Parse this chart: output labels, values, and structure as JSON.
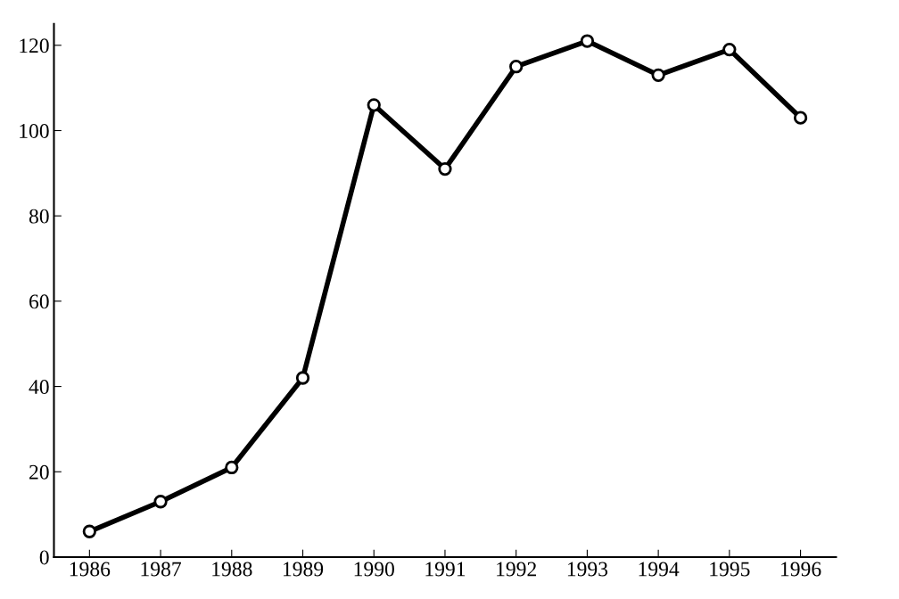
{
  "chart_data": {
    "type": "line",
    "categories": [
      "1986",
      "1987",
      "1988",
      "1989",
      "1990",
      "1991",
      "1992",
      "1993",
      "1994",
      "1995",
      "1996"
    ],
    "series": [
      {
        "color": "#000000",
        "values": [
          6,
          13,
          21,
          42,
          106,
          91,
          115,
          121,
          113,
          119,
          103
        ]
      }
    ],
    "ylim": [
      0,
      125
    ],
    "yticks": [
      0,
      20,
      40,
      60,
      80,
      100,
      120
    ],
    "grid": false,
    "legend": false,
    "marker": "circle",
    "line_style": "solid"
  }
}
